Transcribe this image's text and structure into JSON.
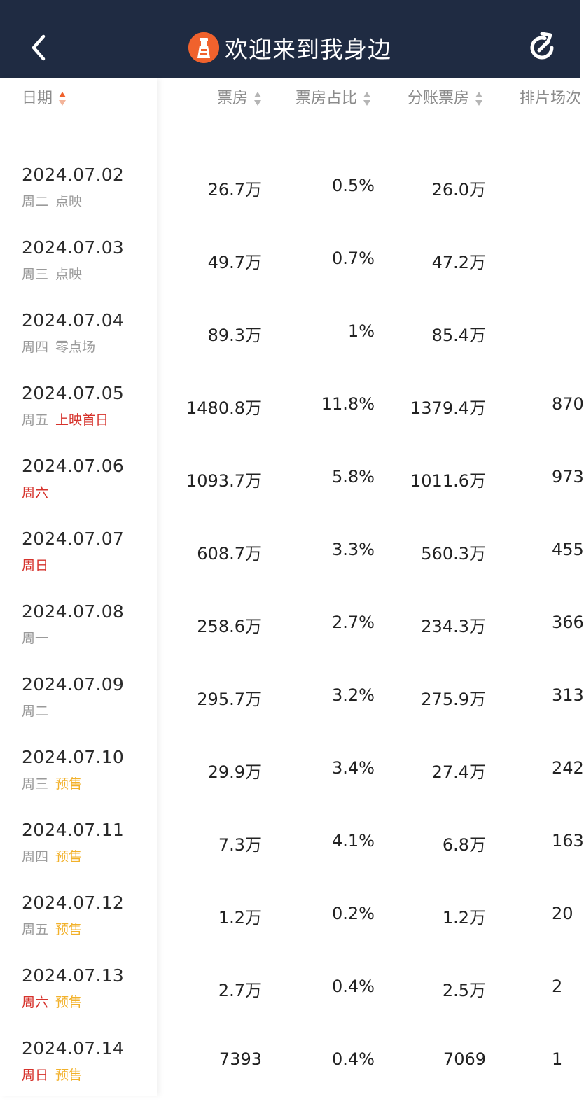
{
  "header": {
    "title": "欢迎来到我身边",
    "icons": {
      "back": "chevron-left-icon",
      "logo": "lighthouse-logo-icon",
      "refresh": "refresh-icon"
    },
    "colors": {
      "bar": "#1f2b42",
      "logo": "#f0622d"
    }
  },
  "table": {
    "columns": [
      "日期",
      "票房",
      "票房占比",
      "分账票房",
      "排片场次"
    ],
    "sorted_column": "日期",
    "rows": [
      {
        "date": "2024.07.02",
        "weekday": "周二",
        "tag": "点映",
        "box": "26.7万",
        "share": "0.5%",
        "split": "26.0万",
        "shows": ""
      },
      {
        "date": "2024.07.03",
        "weekday": "周三",
        "tag": "点映",
        "box": "49.7万",
        "share": "0.7%",
        "split": "47.2万",
        "shows": ""
      },
      {
        "date": "2024.07.04",
        "weekday": "周四",
        "tag": "零点场",
        "box": "89.3万",
        "share": "1%",
        "split": "85.4万",
        "shows": ""
      },
      {
        "date": "2024.07.05",
        "weekday": "周五",
        "tag": "上映首日",
        "box": "1480.8万",
        "share": "11.8%",
        "split": "1379.4万",
        "shows": "870"
      },
      {
        "date": "2024.07.06",
        "weekday": "周六",
        "tag": "",
        "box": "1093.7万",
        "share": "5.8%",
        "split": "1011.6万",
        "shows": "973"
      },
      {
        "date": "2024.07.07",
        "weekday": "周日",
        "tag": "",
        "box": "608.7万",
        "share": "3.3%",
        "split": "560.3万",
        "shows": "455"
      },
      {
        "date": "2024.07.08",
        "weekday": "周一",
        "tag": "",
        "box": "258.6万",
        "share": "2.7%",
        "split": "234.3万",
        "shows": "366"
      },
      {
        "date": "2024.07.09",
        "weekday": "周二",
        "tag": "",
        "box": "295.7万",
        "share": "3.2%",
        "split": "275.9万",
        "shows": "313"
      },
      {
        "date": "2024.07.10",
        "weekday": "周三",
        "tag": "预售",
        "box": "29.9万",
        "share": "3.4%",
        "split": "27.4万",
        "shows": "242"
      },
      {
        "date": "2024.07.11",
        "weekday": "周四",
        "tag": "预售",
        "box": "7.3万",
        "share": "4.1%",
        "split": "6.8万",
        "shows": "163"
      },
      {
        "date": "2024.07.12",
        "weekday": "周五",
        "tag": "预售",
        "box": "1.2万",
        "share": "0.2%",
        "split": "1.2万",
        "shows": "20"
      },
      {
        "date": "2024.07.13",
        "weekday": "周六",
        "tag": "预售",
        "box": "2.7万",
        "share": "0.4%",
        "split": "2.5万",
        "shows": "2"
      },
      {
        "date": "2024.07.14",
        "weekday": "周日",
        "tag": "预售",
        "box": "7393",
        "share": "0.4%",
        "split": "7069",
        "shows": "1"
      }
    ]
  }
}
